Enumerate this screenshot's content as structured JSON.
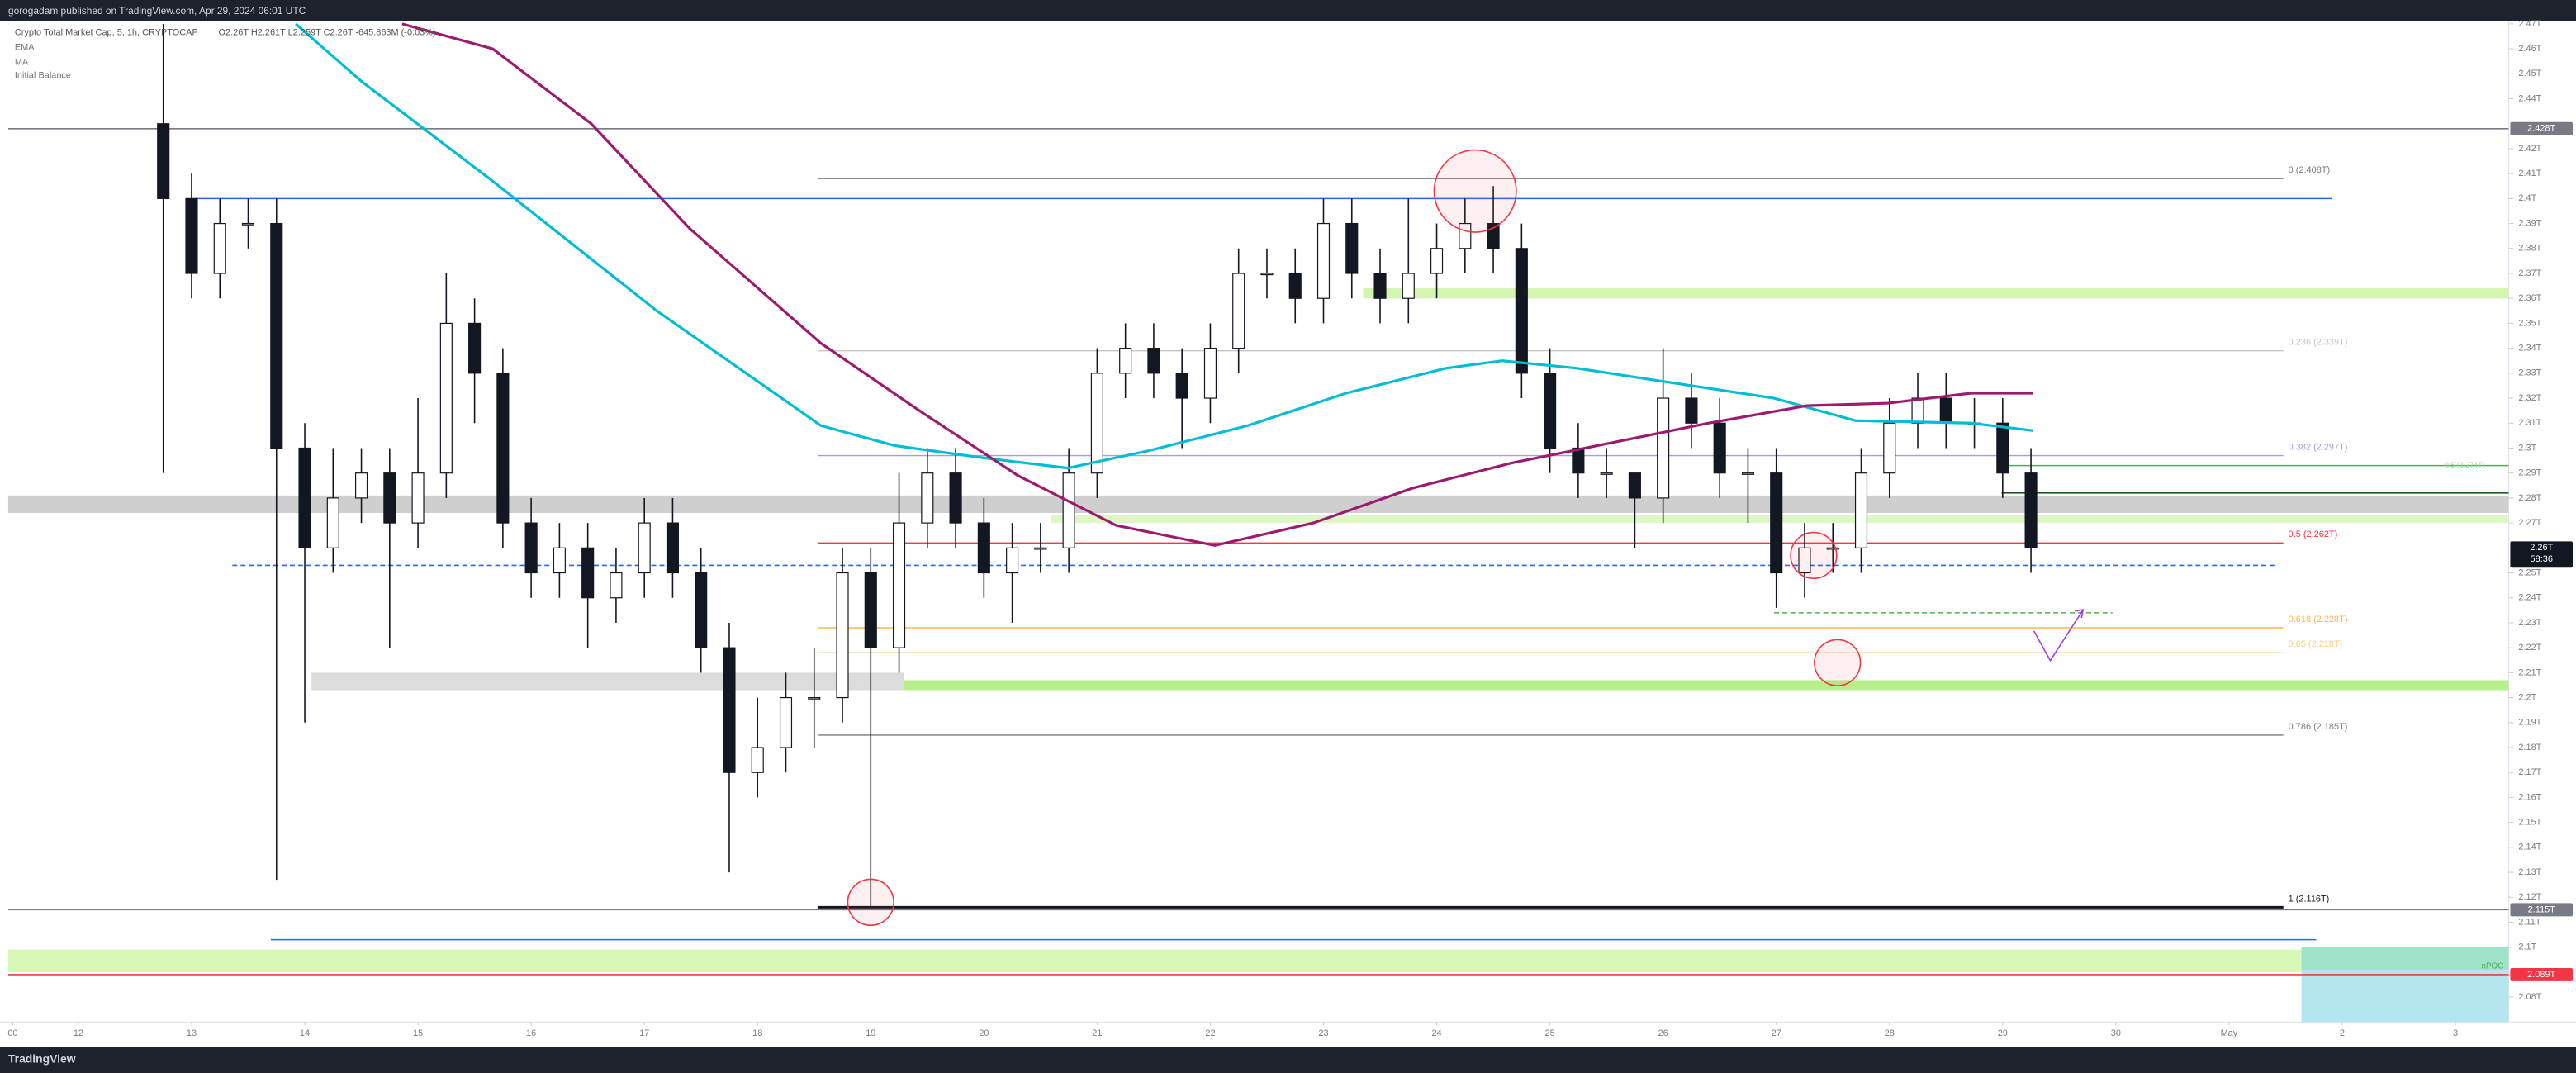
{
  "header": {
    "publisher": "gorogadam published on TradingView.com, Apr 29, 2024 06:01 UTC",
    "brand": "TradingView"
  },
  "chart_data": {
    "type": "candlestick",
    "title": "Crypto Total Market Cap, 5, 1h, CRYPTOCAP",
    "ohlc_text": "O2.26T H2.261T L2.259T C2.26T -645.863M (-0.03%)",
    "extra_indicator": "Initial Balance",
    "xlim": [
      -0.62,
      21.47
    ],
    "ylim": [
      2.07,
      2.471
    ],
    "xticks": [
      {
        "value": -0.58,
        "label": "00"
      },
      {
        "value": 0,
        "label": "12"
      },
      {
        "value": 1,
        "label": "13"
      },
      {
        "value": 2,
        "label": "14"
      },
      {
        "value": 3,
        "label": "15"
      },
      {
        "value": 4,
        "label": "16"
      },
      {
        "value": 5,
        "label": "17"
      },
      {
        "value": 6,
        "label": "18"
      },
      {
        "value": 7,
        "label": "19"
      },
      {
        "value": 8,
        "label": "20"
      },
      {
        "value": 9,
        "label": "21"
      },
      {
        "value": 10,
        "label": "22"
      },
      {
        "value": 11,
        "label": "23"
      },
      {
        "value": 12,
        "label": "24"
      },
      {
        "value": 13,
        "label": "25"
      },
      {
        "value": 14,
        "label": "26"
      },
      {
        "value": 15,
        "label": "27"
      },
      {
        "value": 16,
        "label": "28"
      },
      {
        "value": 17,
        "label": "29"
      },
      {
        "value": 18,
        "label": "30"
      },
      {
        "value": 19,
        "label": "May"
      },
      {
        "value": 20,
        "label": "2"
      },
      {
        "value": 21,
        "label": "3"
      }
    ],
    "yticks": [
      {
        "value": 2.08,
        "label": "2.08T"
      },
      {
        "value": 2.09,
        "label": "2.09T"
      },
      {
        "value": 2.1,
        "label": "2.1T"
      },
      {
        "value": 2.11,
        "label": "2.11T"
      },
      {
        "value": 2.12,
        "label": "2.12T"
      },
      {
        "value": 2.13,
        "label": "2.13T"
      },
      {
        "value": 2.14,
        "label": "2.14T"
      },
      {
        "value": 2.15,
        "label": "2.15T"
      },
      {
        "value": 2.16,
        "label": "2.16T"
      },
      {
        "value": 2.17,
        "label": "2.17T"
      },
      {
        "value": 2.18,
        "label": "2.18T"
      },
      {
        "value": 2.19,
        "label": "2.19T"
      },
      {
        "value": 2.2,
        "label": "2.2T"
      },
      {
        "value": 2.21,
        "label": "2.21T"
      },
      {
        "value": 2.22,
        "label": "2.22T"
      },
      {
        "value": 2.23,
        "label": "2.23T"
      },
      {
        "value": 2.24,
        "label": "2.24T"
      },
      {
        "value": 2.25,
        "label": "2.25T"
      },
      {
        "value": 2.27,
        "label": "2.27T"
      },
      {
        "value": 2.28,
        "label": "2.28T"
      },
      {
        "value": 2.29,
        "label": "2.29T"
      },
      {
        "value": 2.3,
        "label": "2.3T"
      },
      {
        "value": 2.31,
        "label": "2.31T"
      },
      {
        "value": 2.32,
        "label": "2.32T"
      },
      {
        "value": 2.33,
        "label": "2.33T"
      },
      {
        "value": 2.34,
        "label": "2.34T"
      },
      {
        "value": 2.35,
        "label": "2.35T"
      },
      {
        "value": 2.36,
        "label": "2.36T"
      },
      {
        "value": 2.37,
        "label": "2.37T"
      },
      {
        "value": 2.38,
        "label": "2.38T"
      },
      {
        "value": 2.39,
        "label": "2.39T"
      },
      {
        "value": 2.4,
        "label": "2.4T"
      },
      {
        "value": 2.41,
        "label": "2.41T"
      },
      {
        "value": 2.42,
        "label": "2.42T"
      },
      {
        "value": 2.44,
        "label": "2.44T"
      },
      {
        "value": 2.45,
        "label": "2.45T"
      },
      {
        "value": 2.46,
        "label": "2.46T"
      },
      {
        "value": 2.47,
        "label": "2.47T"
      }
    ],
    "x": [
      0.75,
      1,
      1.25,
      1.5,
      1.75,
      2,
      2.25,
      2.5,
      2.75,
      3,
      3.25,
      3.5,
      3.75,
      4,
      4.25,
      4.5,
      4.75,
      5,
      5.25,
      5.5,
      5.75,
      6,
      6.25,
      6.5,
      6.75,
      7,
      7.25,
      7.5,
      7.75,
      8,
      8.25,
      8.5,
      8.75,
      9,
      9.25,
      9.5,
      9.75,
      10,
      10.25,
      10.5,
      10.75,
      11,
      11.25,
      11.5,
      11.75,
      12,
      12.25,
      12.5,
      12.75,
      13,
      13.25,
      13.5,
      13.75,
      14,
      14.25,
      14.5,
      14.75,
      15,
      15.25,
      15.5,
      15.75,
      16,
      16.25,
      16.5,
      16.75,
      17,
      17.25
    ],
    "open": [
      2.43,
      2.4,
      2.37,
      2.39,
      2.39,
      2.3,
      2.26,
      2.28,
      2.29,
      2.27,
      2.29,
      2.35,
      2.33,
      2.27,
      2.25,
      2.26,
      2.24,
      2.25,
      2.27,
      2.25,
      2.22,
      2.17,
      2.18,
      2.2,
      2.2,
      2.25,
      2.22,
      2.27,
      2.29,
      2.27,
      2.25,
      2.26,
      2.26,
      2.29,
      2.33,
      2.34,
      2.33,
      2.32,
      2.34,
      2.37,
      2.37,
      2.36,
      2.39,
      2.37,
      2.36,
      2.37,
      2.38,
      2.39,
      2.38,
      2.33,
      2.3,
      2.29,
      2.29,
      2.28,
      2.32,
      2.31,
      2.29,
      2.29,
      2.25,
      2.26,
      2.26,
      2.29,
      2.31,
      2.32,
      2.31,
      2.31,
      2.29
    ],
    "high": [
      2.47,
      2.41,
      2.4,
      2.4,
      2.4,
      2.31,
      2.3,
      2.3,
      2.3,
      2.32,
      2.37,
      2.36,
      2.34,
      2.28,
      2.27,
      2.27,
      2.26,
      2.28,
      2.28,
      2.26,
      2.23,
      2.2,
      2.21,
      2.22,
      2.26,
      2.26,
      2.29,
      2.3,
      2.3,
      2.28,
      2.27,
      2.27,
      2.3,
      2.34,
      2.35,
      2.35,
      2.34,
      2.35,
      2.38,
      2.38,
      2.38,
      2.4,
      2.4,
      2.38,
      2.4,
      2.39,
      2.4,
      2.405,
      2.39,
      2.34,
      2.31,
      2.3,
      2.29,
      2.34,
      2.33,
      2.32,
      2.3,
      2.3,
      2.27,
      2.27,
      2.3,
      2.32,
      2.33,
      2.33,
      2.32,
      2.32,
      2.3
    ],
    "low": [
      2.29,
      2.36,
      2.36,
      2.38,
      2.127,
      2.19,
      2.25,
      2.27,
      2.22,
      2.26,
      2.28,
      2.31,
      2.26,
      2.24,
      2.24,
      2.22,
      2.23,
      2.24,
      2.24,
      2.21,
      2.13,
      2.16,
      2.17,
      2.18,
      2.19,
      2.116,
      2.21,
      2.26,
      2.26,
      2.24,
      2.23,
      2.25,
      2.25,
      2.28,
      2.32,
      2.32,
      2.3,
      2.31,
      2.33,
      2.36,
      2.35,
      2.35,
      2.36,
      2.35,
      2.35,
      2.36,
      2.37,
      2.37,
      2.32,
      2.29,
      2.28,
      2.28,
      2.26,
      2.27,
      2.3,
      2.28,
      2.27,
      2.236,
      2.24,
      2.25,
      2.25,
      2.28,
      2.3,
      2.3,
      2.3,
      2.28,
      2.25
    ],
    "close": [
      2.4,
      2.37,
      2.39,
      2.39,
      2.3,
      2.26,
      2.28,
      2.29,
      2.27,
      2.29,
      2.35,
      2.33,
      2.27,
      2.25,
      2.26,
      2.24,
      2.25,
      2.27,
      2.25,
      2.22,
      2.17,
      2.18,
      2.2,
      2.2,
      2.25,
      2.22,
      2.27,
      2.29,
      2.27,
      2.25,
      2.26,
      2.26,
      2.29,
      2.33,
      2.34,
      2.33,
      2.32,
      2.34,
      2.37,
      2.37,
      2.36,
      2.39,
      2.37,
      2.36,
      2.37,
      2.38,
      2.39,
      2.38,
      2.33,
      2.3,
      2.29,
      2.29,
      2.28,
      2.32,
      2.31,
      2.29,
      2.29,
      2.25,
      2.26,
      2.26,
      2.29,
      2.31,
      2.32,
      2.31,
      2.31,
      2.29,
      2.26
    ],
    "series": [
      {
        "name": "EMA",
        "color": "#00bcd4",
        "x": [
          1.92,
          2.5,
          3.66,
          5.11,
          6.56,
          7.21,
          8.01,
          8.74,
          9.46,
          10.33,
          11.2,
          12.08,
          12.58,
          13.24,
          13.96,
          14.98,
          15.7,
          16.72,
          17.27
        ],
        "values": [
          2.47,
          2.447,
          2.407,
          2.355,
          2.309,
          2.301,
          2.296,
          2.292,
          2.299,
          2.309,
          2.322,
          2.332,
          2.335,
          2.332,
          2.327,
          2.32,
          2.311,
          2.31,
          2.307
        ]
      },
      {
        "name": "MA",
        "color": "#9c1b6e",
        "x": [
          2.86,
          3.66,
          4.53,
          5.4,
          6.56,
          7.43,
          8.3,
          9.17,
          10.04,
          10.91,
          11.79,
          12.66,
          13.53,
          14.4,
          15.27,
          15.99,
          16.72,
          17.27
        ],
        "values": [
          2.47,
          2.46,
          2.43,
          2.388,
          2.342,
          2.315,
          2.289,
          2.269,
          2.261,
          2.27,
          2.284,
          2.294,
          2.302,
          2.31,
          2.317,
          2.318,
          2.322,
          2.322
        ]
      }
    ],
    "zones": [
      {
        "ymin": 2.36,
        "ymax": 2.364,
        "xmin": 11.35,
        "xmax": 21.47,
        "color": "#d4f5b0"
      },
      {
        "ymin": 2.274,
        "ymax": 2.281,
        "xmin": -0.62,
        "xmax": 21.47,
        "color": "#cfcfcf"
      },
      {
        "ymin": 2.27,
        "ymax": 2.273,
        "xmin": 8.59,
        "xmax": 21.47,
        "color": "#dff7c6"
      },
      {
        "ymin": 2.203,
        "ymax": 2.21,
        "xmin": 2.06,
        "xmax": 7.29,
        "color": "#dcdcdc"
      },
      {
        "ymin": 2.203,
        "ymax": 2.207,
        "xmin": 7.29,
        "xmax": 21.47,
        "color": "#b9ef8a"
      },
      {
        "ymin": 2.09,
        "ymax": 2.099,
        "xmin": -0.62,
        "xmax": 21.47,
        "color": "#d8f8b8"
      },
      {
        "ymin": 2.091,
        "ymax": 2.1,
        "xmin": 19.64,
        "xmax": 21.47,
        "color": "#9ee3c8"
      },
      {
        "ymin": 2.07,
        "ymax": 2.091,
        "xmin": 19.64,
        "xmax": 21.47,
        "color": "#b4e6ef"
      }
    ],
    "lines": [
      {
        "value": 2.428,
        "xmin": -0.62,
        "xmax": 21.47,
        "color": "#787b86",
        "dash": false
      },
      {
        "value": 2.115,
        "xmin": -0.62,
        "xmax": 21.47,
        "color": "#787b86",
        "dash": false
      },
      {
        "value": 2.4,
        "xmin": 1.03,
        "xmax": 19.91,
        "color": "#2962ff",
        "dash": false
      },
      {
        "value": 2.103,
        "xmin": 1.7,
        "xmax": 19.77,
        "color": "#2962ff",
        "dash": false
      },
      {
        "value": 2.253,
        "xmin": 1.36,
        "xmax": 19.42,
        "color": "#2962ff",
        "dash": true
      },
      {
        "value": 2.089,
        "xmin": -0.62,
        "xmax": 21.47,
        "color": "#f23645",
        "dash": false
      },
      {
        "value": 2.293,
        "xmin": 16.99,
        "xmax": 21.47,
        "color": "#4caf50",
        "dash": false
      },
      {
        "value": 2.282,
        "xmin": 16.99,
        "xmax": 21.47,
        "color": "#1b5e20",
        "dash": false
      },
      {
        "value": 2.234,
        "xmin": 14.98,
        "xmax": 17.97,
        "color": "#4caf50",
        "dash": true
      }
    ],
    "fib_x": [
      6.53,
      19.48
    ],
    "fib_levels": [
      {
        "value": 2.408,
        "label": "0 (2.408T)",
        "color": "#787b86"
      },
      {
        "value": 2.339,
        "label": "0.236 (2.339T)",
        "color": "#c4c6cc"
      },
      {
        "value": 2.297,
        "label": "0.382 (2.297T)",
        "color": "#a99bdc"
      },
      {
        "value": 2.262,
        "label": "0.5 (2.262T)",
        "color": "#f23645"
      },
      {
        "value": 2.228,
        "label": "0.618 (2.228T)",
        "color": "#ffb74d"
      },
      {
        "value": 2.218,
        "label": "0.65 (2.218T)",
        "color": "#ffcc80"
      },
      {
        "value": 2.185,
        "label": "0.786 (2.185T)",
        "color": "#787b86"
      },
      {
        "value": 2.116,
        "label": "1 (2.116T)",
        "color": "#131722"
      }
    ],
    "green_line_label": "0.5 (2.274T)",
    "circles": [
      {
        "x": 12.34,
        "y": 2.403
      },
      {
        "x": 7,
        "y": 2.118
      },
      {
        "x": 15.33,
        "y": 2.257
      },
      {
        "x": 15.54,
        "y": 2.214
      }
    ],
    "npoc_label": "nPOC",
    "price_tags": [
      {
        "value": 2.428,
        "label": "2.428T",
        "color": "#787b86"
      },
      {
        "value": 2.26,
        "label": "2.26T",
        "sub": "58:36",
        "color": "#131722"
      },
      {
        "value": 2.115,
        "label": "2.115T",
        "color": "#787b86"
      },
      {
        "value": 2.089,
        "label": "2.089T",
        "color": "#f23645"
      }
    ]
  }
}
